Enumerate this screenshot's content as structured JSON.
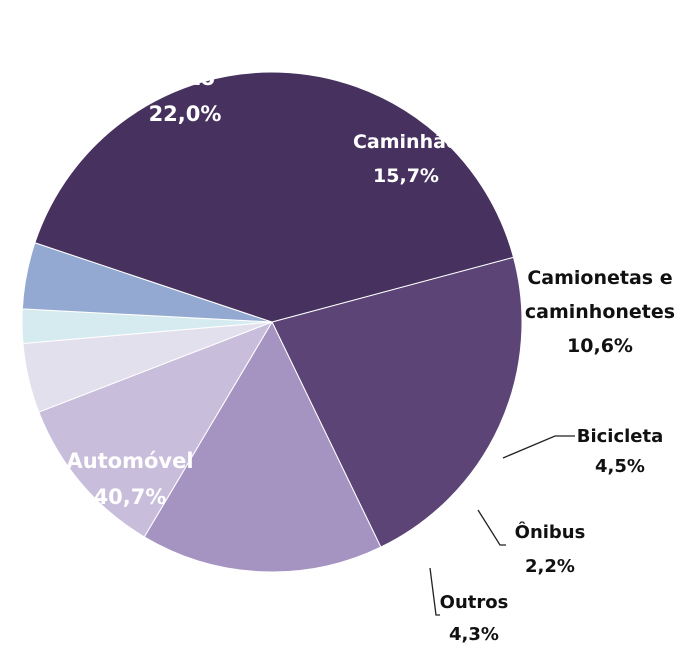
{
  "chart_data": {
    "type": "pie",
    "title": "",
    "slices": [
      {
        "label": "Moto",
        "value": 22.0,
        "value_text": "22,0%",
        "color": "#5c4477"
      },
      {
        "label": "Caminhão",
        "value": 15.7,
        "value_text": "15,7%",
        "color": "#a594c2"
      },
      {
        "label": "Camionetas e caminhonetes",
        "label_lines": [
          "Camionetas e",
          "caminhonetes"
        ],
        "value": 10.6,
        "value_text": "10,6%",
        "color": "#c8bedb"
      },
      {
        "label": "Bicicleta",
        "value": 4.5,
        "value_text": "4,5%",
        "color": "#e3e0ed"
      },
      {
        "label": "Ônibus",
        "value": 2.2,
        "value_text": "2,2%",
        "color": "#d6ebf0"
      },
      {
        "label": "Outros",
        "value": 4.3,
        "value_text": "4,3%",
        "color": "#93a9d1"
      },
      {
        "label": "Automóvel",
        "value": 40.7,
        "value_text": "40,7%",
        "color": "#47325f"
      }
    ]
  }
}
